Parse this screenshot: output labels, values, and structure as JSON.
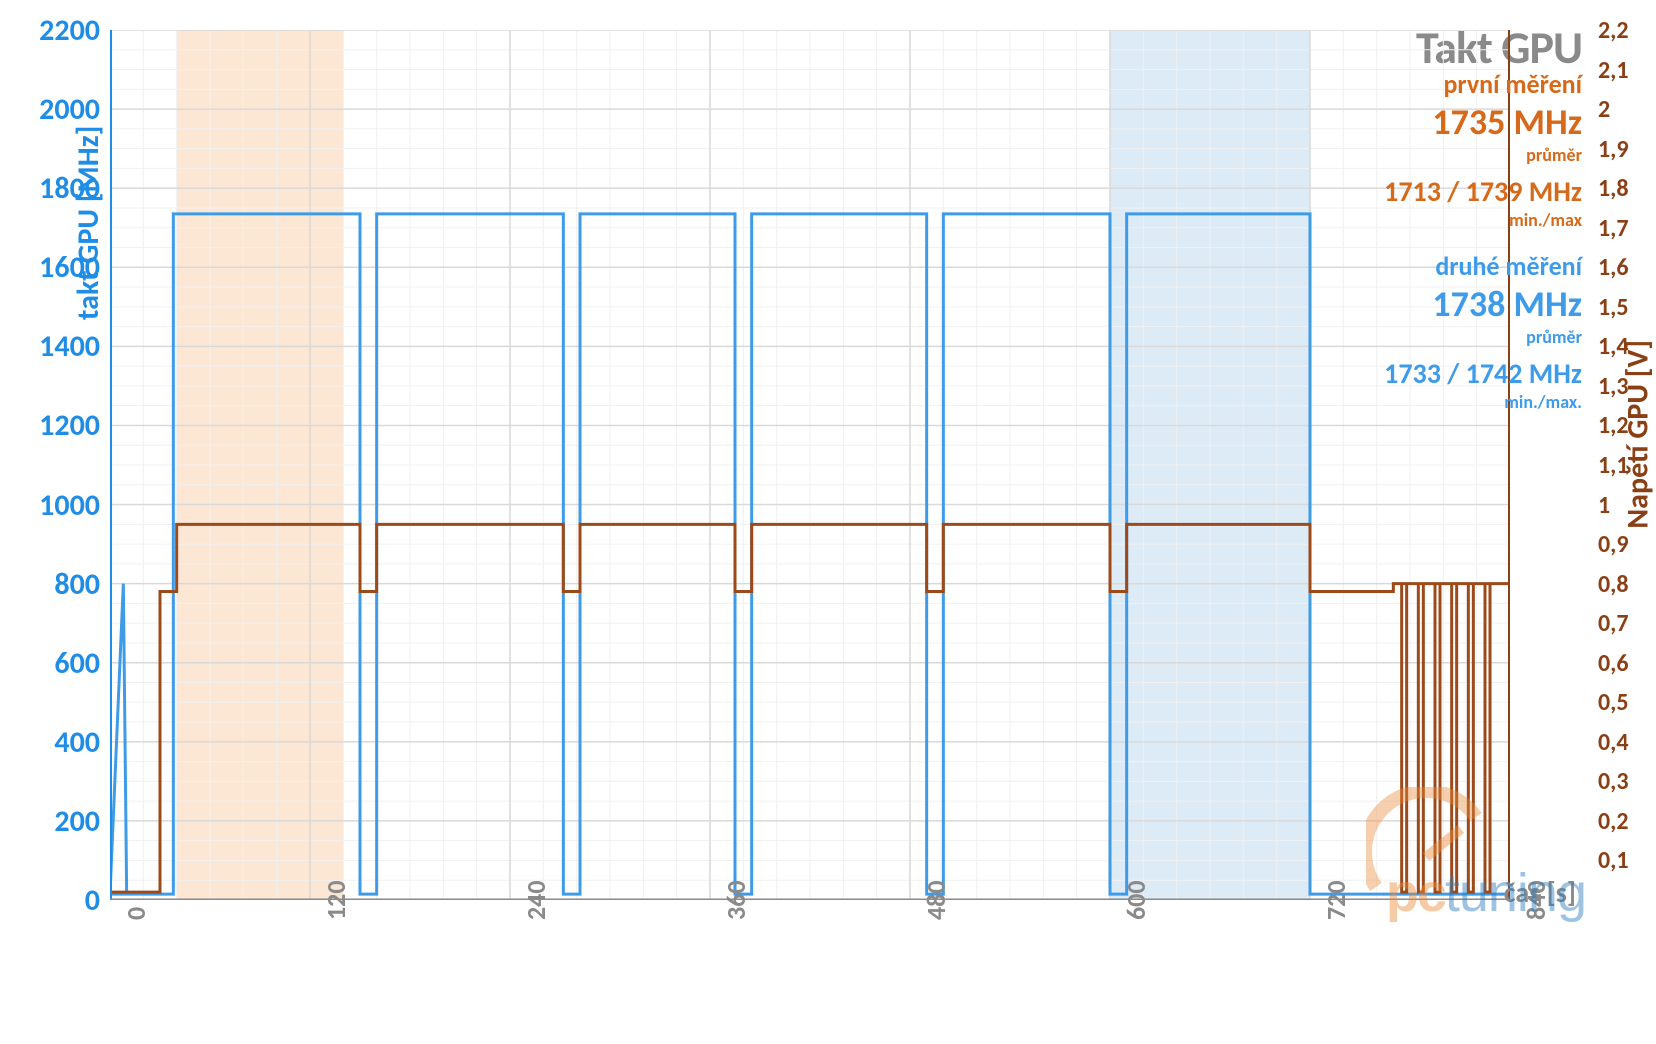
{
  "title": "Takt GPU",
  "title_color": "#8a8a8a",
  "colors": {
    "line_blue": "#3e9be9",
    "line_brown": "#9c4a1a",
    "axis_blue": "#1f8de6",
    "axis_brown": "#8a3f15",
    "grid_major": "#d9d9d9",
    "grid_minor": "#f0f0f0",
    "shade_orange": "#fbe3cc",
    "shade_blue": "#d6e7f5",
    "text_gray": "#8a8a8a",
    "wm_orange": "#e98b3a",
    "wm_blue": "#2a7bbf"
  },
  "y_left": {
    "label": "takt GPU [MHz]",
    "min": 0,
    "max": 2200,
    "tick_step": 200,
    "ticks": [
      0,
      200,
      400,
      600,
      800,
      1000,
      1200,
      1400,
      1600,
      1800,
      2000,
      2200
    ]
  },
  "y_right": {
    "label": "Napětí GPU [V]",
    "min": 0,
    "max": 2.2,
    "tick_step": 0.1,
    "ticks": [
      "0,1",
      "0,2",
      "0,3",
      "0,4",
      "0,5",
      "0,6",
      "0,7",
      "0,8",
      "0,9",
      "1",
      "1,1",
      "1,2",
      "1,3",
      "1,4",
      "1,5",
      "1,6",
      "1,7",
      "1,8",
      "1,9",
      "2",
      "2,1",
      "2,2"
    ]
  },
  "x_axis": {
    "label": "čas [s]",
    "min": 0,
    "max": 840,
    "tick_step": 120,
    "ticks": [
      0,
      120,
      240,
      360,
      480,
      600,
      720,
      840
    ]
  },
  "shaded_ranges": [
    {
      "from": 40,
      "to": 140,
      "color": "shade_orange"
    },
    {
      "from": 600,
      "to": 720,
      "color": "shade_blue"
    }
  ],
  "series_clock_mhz": {
    "high": 1735,
    "low": 15,
    "spike_to": 800,
    "spike_at": 8,
    "segments": [
      {
        "t0": 0,
        "t1": 38,
        "v": 15
      },
      {
        "t0": 38,
        "t1": 150,
        "v": 1735
      },
      {
        "t0": 150,
        "t1": 160,
        "v": 15
      },
      {
        "t0": 160,
        "t1": 272,
        "v": 1735
      },
      {
        "t0": 272,
        "t1": 282,
        "v": 15
      },
      {
        "t0": 282,
        "t1": 375,
        "v": 1735
      },
      {
        "t0": 375,
        "t1": 385,
        "v": 15
      },
      {
        "t0": 385,
        "t1": 490,
        "v": 1735
      },
      {
        "t0": 490,
        "t1": 500,
        "v": 15
      },
      {
        "t0": 500,
        "t1": 600,
        "v": 1735
      },
      {
        "t0": 600,
        "t1": 610,
        "v": 15
      },
      {
        "t0": 610,
        "t1": 720,
        "v": 1735
      },
      {
        "t0": 720,
        "t1": 840,
        "v": 15
      }
    ]
  },
  "series_voltage_v": {
    "high": 0.95,
    "mid": 0.78,
    "low": 0.02,
    "segments": [
      {
        "t0": 0,
        "t1": 30,
        "v": 0.02
      },
      {
        "t0": 30,
        "t1": 40,
        "v": 0.78
      },
      {
        "t0": 40,
        "t1": 150,
        "v": 0.95
      },
      {
        "t0": 150,
        "t1": 160,
        "v": 0.78
      },
      {
        "t0": 160,
        "t1": 272,
        "v": 0.95
      },
      {
        "t0": 272,
        "t1": 282,
        "v": 0.78
      },
      {
        "t0": 282,
        "t1": 375,
        "v": 0.95
      },
      {
        "t0": 375,
        "t1": 385,
        "v": 0.78
      },
      {
        "t0": 385,
        "t1": 490,
        "v": 0.95
      },
      {
        "t0": 490,
        "t1": 500,
        "v": 0.78
      },
      {
        "t0": 500,
        "t1": 600,
        "v": 0.95
      },
      {
        "t0": 600,
        "t1": 610,
        "v": 0.78
      },
      {
        "t0": 610,
        "t1": 720,
        "v": 0.95
      },
      {
        "t0": 720,
        "t1": 770,
        "v": 0.78
      },
      {
        "t0": 770,
        "t1": 840,
        "v": 0.8
      }
    ],
    "end_spikes": [
      775,
      785,
      795,
      805,
      815,
      825
    ]
  },
  "annotations": {
    "m1": {
      "label": "první měření",
      "value": "1735 MHz",
      "sub": "průměr",
      "minmax": "1713 / 1739 MHz",
      "mmsub": "min./max",
      "color": "#d66a1a"
    },
    "m2": {
      "label": "druhé měření",
      "value": "1738 MHz",
      "sub": "průměr",
      "minmax": "1733 / 1742 MHz",
      "mmsub": "min./max.",
      "color": "#3e9be9"
    }
  },
  "watermark": {
    "pc": "pc",
    "tuning": "tuning"
  }
}
